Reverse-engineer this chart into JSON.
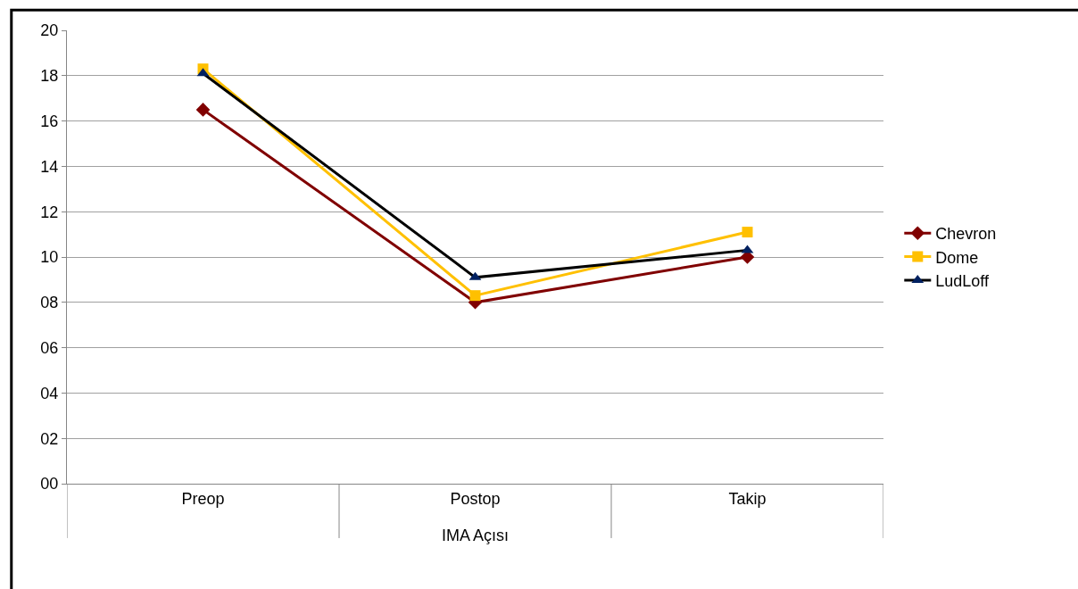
{
  "chart_data": {
    "type": "line",
    "categories": [
      "Preop",
      "Postop",
      "Takip"
    ],
    "xlabel": "IMA Açısı",
    "ylim": [
      0,
      20
    ],
    "yticks": [
      {
        "value": 0,
        "label": "00"
      },
      {
        "value": 2,
        "label": "02"
      },
      {
        "value": 4,
        "label": "04"
      },
      {
        "value": 6,
        "label": "06"
      },
      {
        "value": 8,
        "label": "08"
      },
      10,
      12,
      14,
      16,
      18,
      20
    ],
    "grid": "y",
    "legend": "right",
    "series": [
      {
        "name": "Chevron",
        "color": "#800000",
        "marker": "diamond",
        "values": [
          16.5,
          8.0,
          10.0
        ]
      },
      {
        "name": "Dome",
        "color": "#ffc000",
        "marker": "square",
        "values": [
          18.3,
          8.3,
          11.1
        ]
      },
      {
        "name": "LudLoff",
        "color": "#000000",
        "marker": "triangle",
        "values": [
          18.1,
          9.1,
          10.3
        ]
      }
    ]
  }
}
